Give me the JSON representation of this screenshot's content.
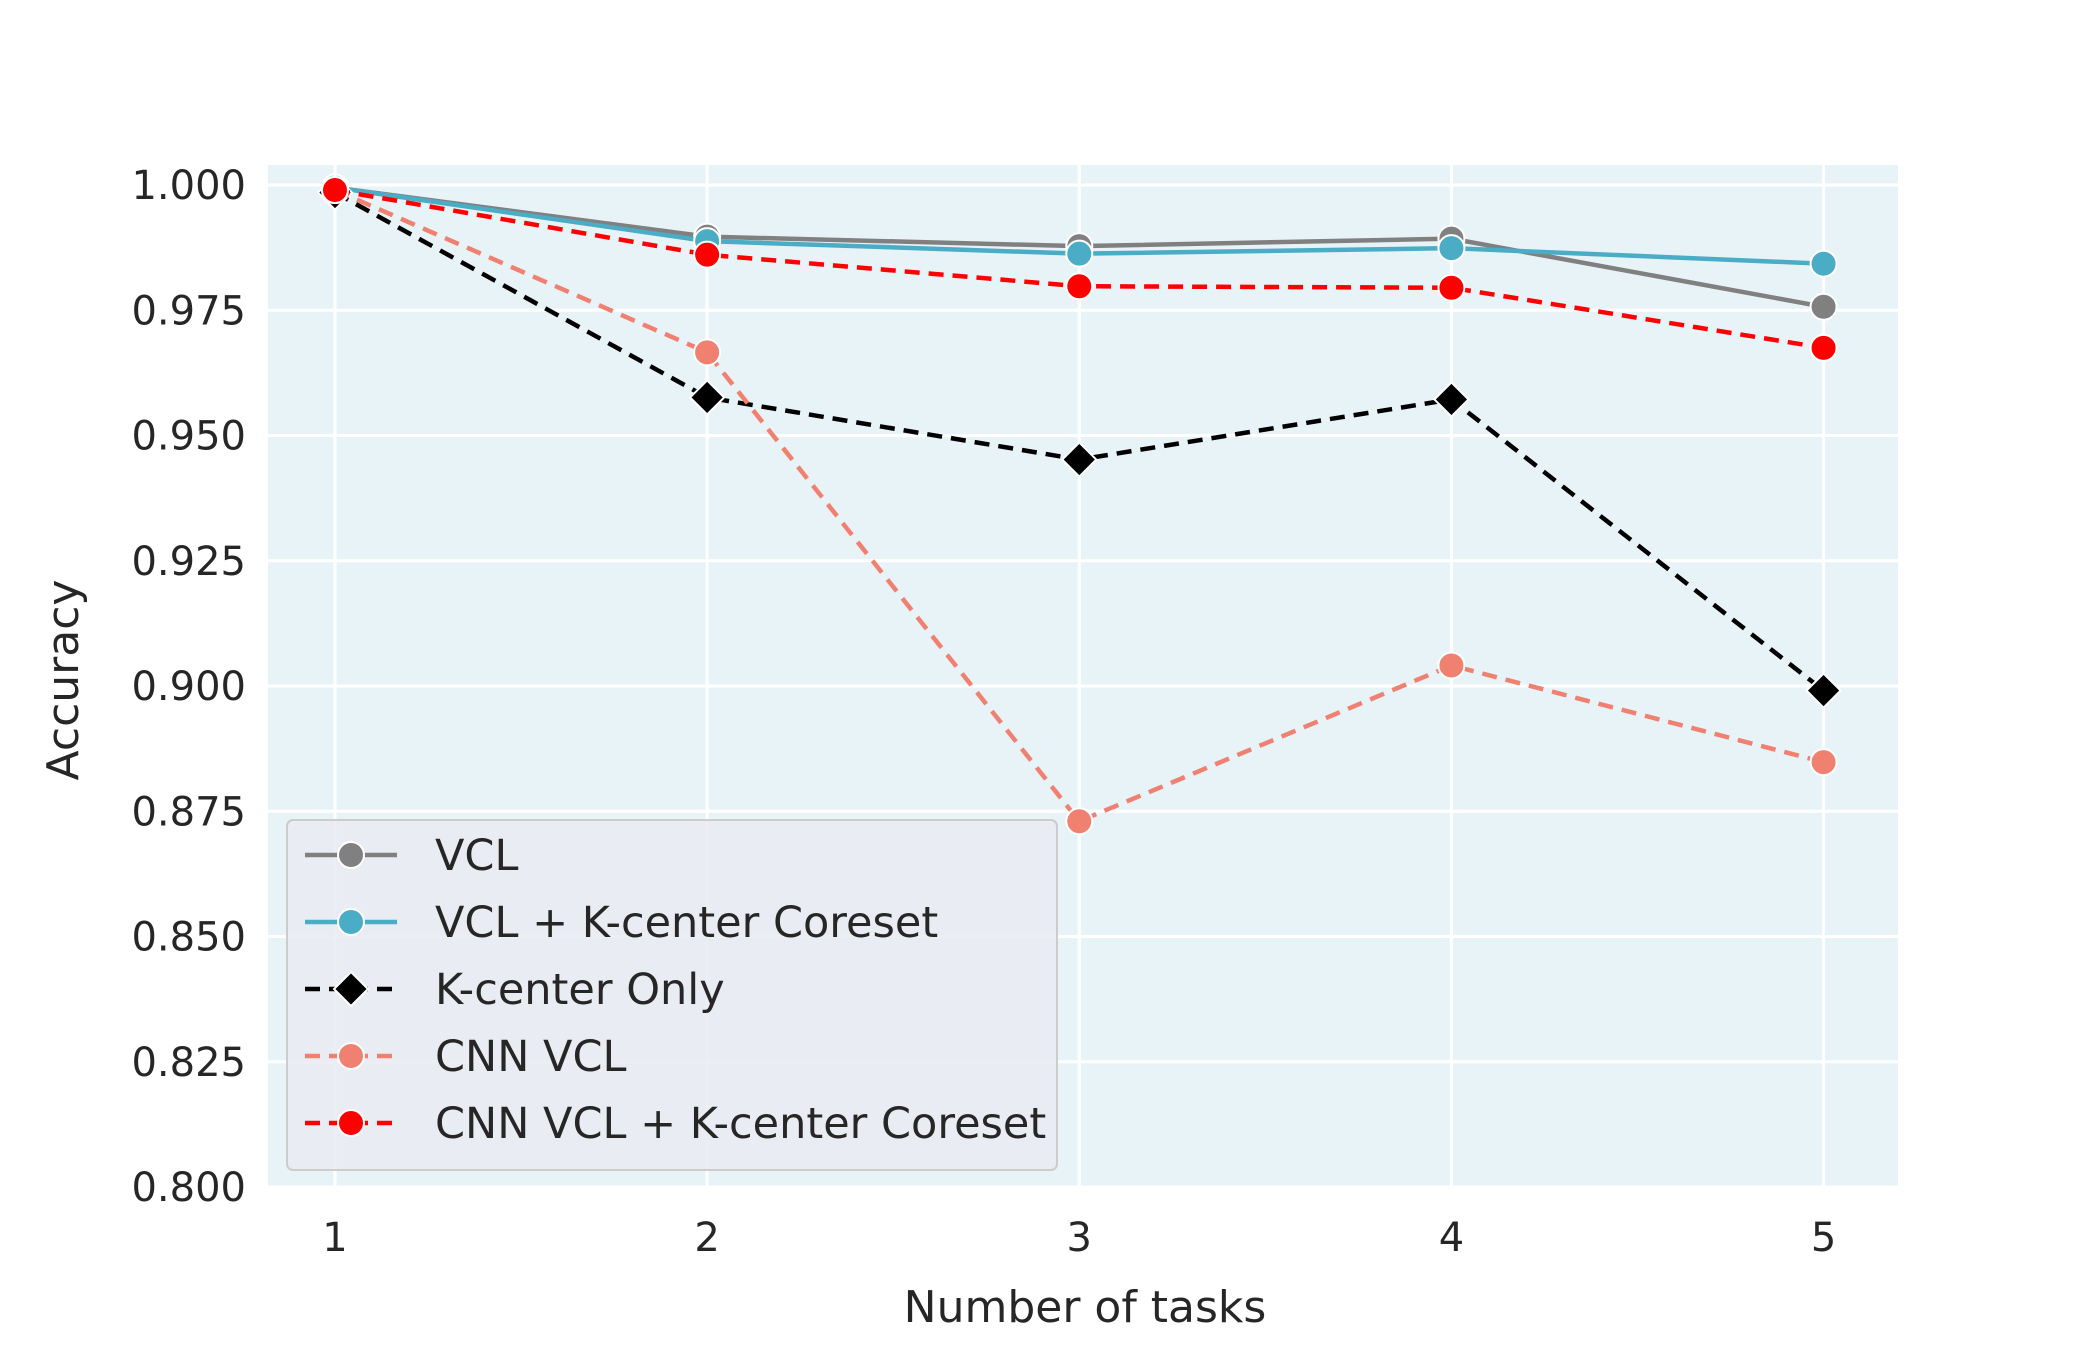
{
  "chart_data": {
    "type": "line",
    "xlabel": "Number of tasks",
    "ylabel": "Accuracy",
    "x": [
      1,
      2,
      3,
      4,
      5
    ],
    "xlim": [
      0.82,
      5.2
    ],
    "ylim": [
      0.8,
      1.004
    ],
    "xticks": [
      "1",
      "2",
      "3",
      "4",
      "5"
    ],
    "yticks": [
      "0.800",
      "0.825",
      "0.850",
      "0.875",
      "0.900",
      "0.925",
      "0.950",
      "0.975",
      "1.000"
    ],
    "grid": true,
    "legend_position": "lower-left",
    "background_color": "#e8f3f8",
    "series": [
      {
        "name": "VCL",
        "values": [
          0.9995,
          0.9897,
          0.9878,
          0.9893,
          0.9757
        ],
        "color": "#808080",
        "line_style": "solid",
        "marker": "circle"
      },
      {
        "name": "VCL + K-center Coreset",
        "values": [
          0.9995,
          0.9888,
          0.9863,
          0.9874,
          0.9843
        ],
        "color": "#4bacc6",
        "line_style": "solid",
        "marker": "circle"
      },
      {
        "name": "K-center Only",
        "values": [
          0.9985,
          0.9576,
          0.9452,
          0.9572,
          0.8991
        ],
        "color": "#000000",
        "line_style": "dashed",
        "marker": "diamond"
      },
      {
        "name": "CNN VCL",
        "values": [
          0.999,
          0.9666,
          0.873,
          0.9041,
          0.8848
        ],
        "color": "#f08070",
        "line_style": "dashed",
        "marker": "circle"
      },
      {
        "name": "CNN VCL + K-center Coreset",
        "values": [
          0.999,
          0.9861,
          0.9798,
          0.9795,
          0.9675
        ],
        "color": "#ff0000",
        "line_style": "dashed",
        "marker": "circle"
      }
    ]
  }
}
